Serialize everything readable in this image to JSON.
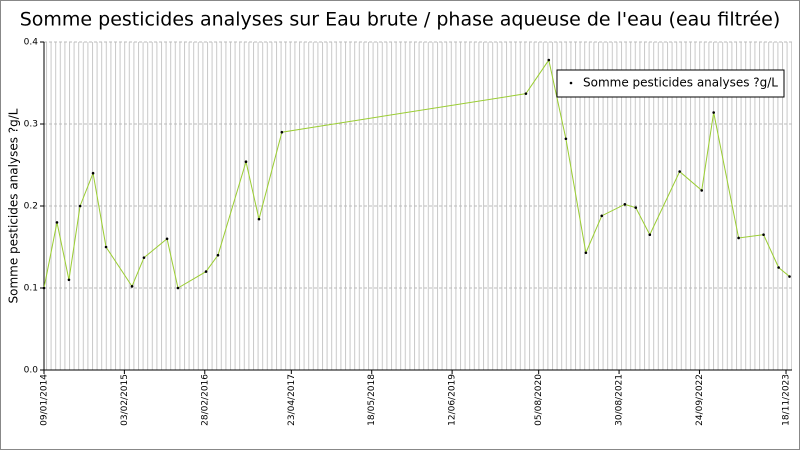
{
  "chart_data": {
    "type": "line",
    "title": "Somme pesticides analyses sur Eau brute / phase aqueuse de l'eau (eau filtrée)",
    "y_label": "Somme pesticides analyses ?g/L",
    "x": [
      "2014-01-09",
      "2014-03-13",
      "2014-05-10",
      "2014-07-03",
      "2014-09-04",
      "2014-11-06",
      "2015-03-12",
      "2015-05-09",
      "2015-08-29",
      "2015-10-21",
      "2016-03-05",
      "2016-05-02",
      "2016-09-15",
      "2016-11-17",
      "2017-03-08",
      "2020-06-04",
      "2020-09-23",
      "2020-12-15",
      "2021-03-22",
      "2021-06-07",
      "2021-09-27",
      "2021-11-19",
      "2022-01-26",
      "2022-06-20",
      "2022-10-05",
      "2022-12-02",
      "2023-04-02",
      "2023-08-01",
      "2023-10-13",
      "2023-12-05"
    ],
    "series": [
      {
        "name": "Somme pesticides analyses ?g/L",
        "color": "#9acd32",
        "values": [
          0.1,
          0.18,
          0.11,
          0.2,
          0.24,
          0.15,
          0.102,
          0.137,
          0.16,
          0.1,
          0.12,
          0.14,
          0.254,
          0.184,
          0.29,
          0.337,
          0.378,
          0.282,
          0.143,
          0.188,
          0.202,
          0.198,
          0.165,
          0.242,
          0.219,
          0.314,
          0.161,
          0.165,
          0.125,
          0.114
        ]
      }
    ],
    "xlim": [
      "2014-01-09",
      "2023-12-17"
    ],
    "xticks": [
      {
        "value": "2014-01-09",
        "label": "09/01/2014"
      },
      {
        "value": "2015-02-03",
        "label": "03/02/2015"
      },
      {
        "value": "2016-02-28",
        "label": "28/02/2016"
      },
      {
        "value": "2017-04-23",
        "label": "23/04/2017"
      },
      {
        "value": "2018-05-18",
        "label": "18/05/2018"
      },
      {
        "value": "2019-06-12",
        "label": "12/06/2019"
      },
      {
        "value": "2020-08-05",
        "label": "05/08/2020"
      },
      {
        "value": "2021-08-30",
        "label": "30/08/2021"
      },
      {
        "value": "2022-09-24",
        "label": "24/09/2022"
      },
      {
        "value": "2023-11-18",
        "label": "18/11/2023"
      }
    ],
    "ylim": [
      0,
      0.4
    ],
    "yticks": [
      {
        "value": 0,
        "label": "0.0"
      },
      0.1,
      0.2,
      0.3,
      0.4
    ],
    "grid": true,
    "legend": "upper right"
  }
}
